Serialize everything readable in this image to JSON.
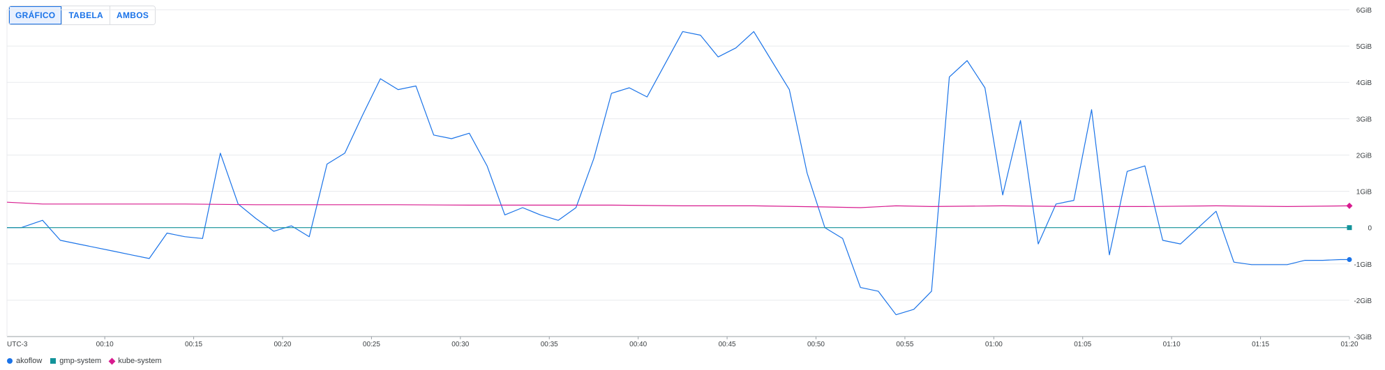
{
  "view_toggle": {
    "options": [
      "GRÁFICO",
      "TABELA",
      "AMBOS"
    ],
    "selected": "GRÁFICO"
  },
  "chart_data": {
    "type": "line",
    "x_label_timezone": "UTC-3",
    "x_ticks": [
      "00:10",
      "00:15",
      "00:20",
      "00:25",
      "00:30",
      "00:35",
      "00:40",
      "00:45",
      "00:50",
      "00:55",
      "01:00",
      "01:05",
      "01:10",
      "01:15",
      "01:20"
    ],
    "y_ticks": [
      "6GiB",
      "5GiB",
      "4GiB",
      "3GiB",
      "2GiB",
      "1GiB",
      "0",
      "-1GiB",
      "-2GiB",
      "-3GiB"
    ],
    "ylim": [
      -3,
      6
    ],
    "y_unit": "GiB",
    "x_range_minutes": [
      4.5,
      80
    ],
    "grid": true,
    "legend_position": "bottom-left",
    "series": [
      {
        "name": "akoflow",
        "color": "#1a73e8",
        "marker": "circle",
        "x": [
          4.5,
          5.3,
          6.5,
          7.5,
          8.5,
          9.5,
          10.5,
          11.5,
          12.5,
          13.5,
          14.5,
          15.5,
          16.5,
          17.5,
          18.5,
          19.5,
          20.5,
          21.5,
          22.5,
          23.5,
          24.5,
          25.5,
          26.5,
          27.5,
          28.5,
          29.5,
          30.5,
          31.5,
          32.5,
          33.5,
          34.5,
          35.5,
          36.5,
          37.5,
          38.5,
          39.5,
          40.5,
          41.5,
          42.5,
          43.5,
          44.5,
          45.5,
          46.5,
          47.5,
          48.5,
          49.5,
          50.5,
          51.5,
          52.5,
          53.5,
          54.5,
          55.5,
          56.5,
          57.5,
          58.5,
          59.5,
          60.5,
          61.5,
          62.5,
          63.5,
          64.5,
          65.5,
          66.5,
          67.5,
          68.5,
          69.5,
          70.5,
          71.5,
          72.5,
          73.5,
          74.5,
          75.5,
          76.5,
          77.5,
          78.5,
          79.5,
          80
        ],
        "values": [
          0.0,
          0.0,
          0.2,
          -0.35,
          -0.45,
          -0.55,
          -0.65,
          -0.75,
          -0.85,
          -0.15,
          -0.25,
          -0.3,
          2.05,
          0.65,
          0.25,
          -0.1,
          0.05,
          -0.25,
          1.75,
          2.05,
          3.1,
          4.1,
          3.8,
          3.9,
          2.55,
          2.45,
          2.6,
          1.7,
          0.35,
          0.55,
          0.35,
          0.2,
          0.55,
          1.9,
          3.7,
          3.85,
          3.6,
          4.5,
          5.4,
          5.3,
          4.7,
          4.95,
          5.4,
          4.6,
          3.8,
          1.5,
          0.0,
          -0.3,
          -1.65,
          -1.75,
          -2.4,
          -2.25,
          -1.75,
          4.15,
          4.6,
          3.85,
          0.9,
          2.95,
          -0.45,
          0.65,
          0.75,
          3.25,
          -0.75,
          1.55,
          1.7,
          -0.35,
          -0.45,
          0.0,
          0.45,
          -0.95,
          -1.02,
          -1.02,
          -1.02,
          -0.9,
          -0.9,
          -0.88,
          -0.88
        ]
      },
      {
        "name": "gmp-system",
        "color": "#12939a",
        "marker": "square",
        "x": [
          4.5,
          80
        ],
        "values": [
          0.0,
          0.0
        ]
      },
      {
        "name": "kube-system",
        "color": "#d81b8f",
        "marker": "diamond",
        "x": [
          4.5,
          6.5,
          10.5,
          14.5,
          18.5,
          22.5,
          26.5,
          30.5,
          34.5,
          38.5,
          42.5,
          46.5,
          50.5,
          52.5,
          54.5,
          56.5,
          60.5,
          64.5,
          68.5,
          72.5,
          76.5,
          80
        ],
        "values": [
          0.7,
          0.65,
          0.65,
          0.65,
          0.63,
          0.63,
          0.63,
          0.62,
          0.62,
          0.62,
          0.6,
          0.6,
          0.57,
          0.55,
          0.6,
          0.58,
          0.6,
          0.58,
          0.58,
          0.6,
          0.58,
          0.6
        ]
      }
    ]
  }
}
